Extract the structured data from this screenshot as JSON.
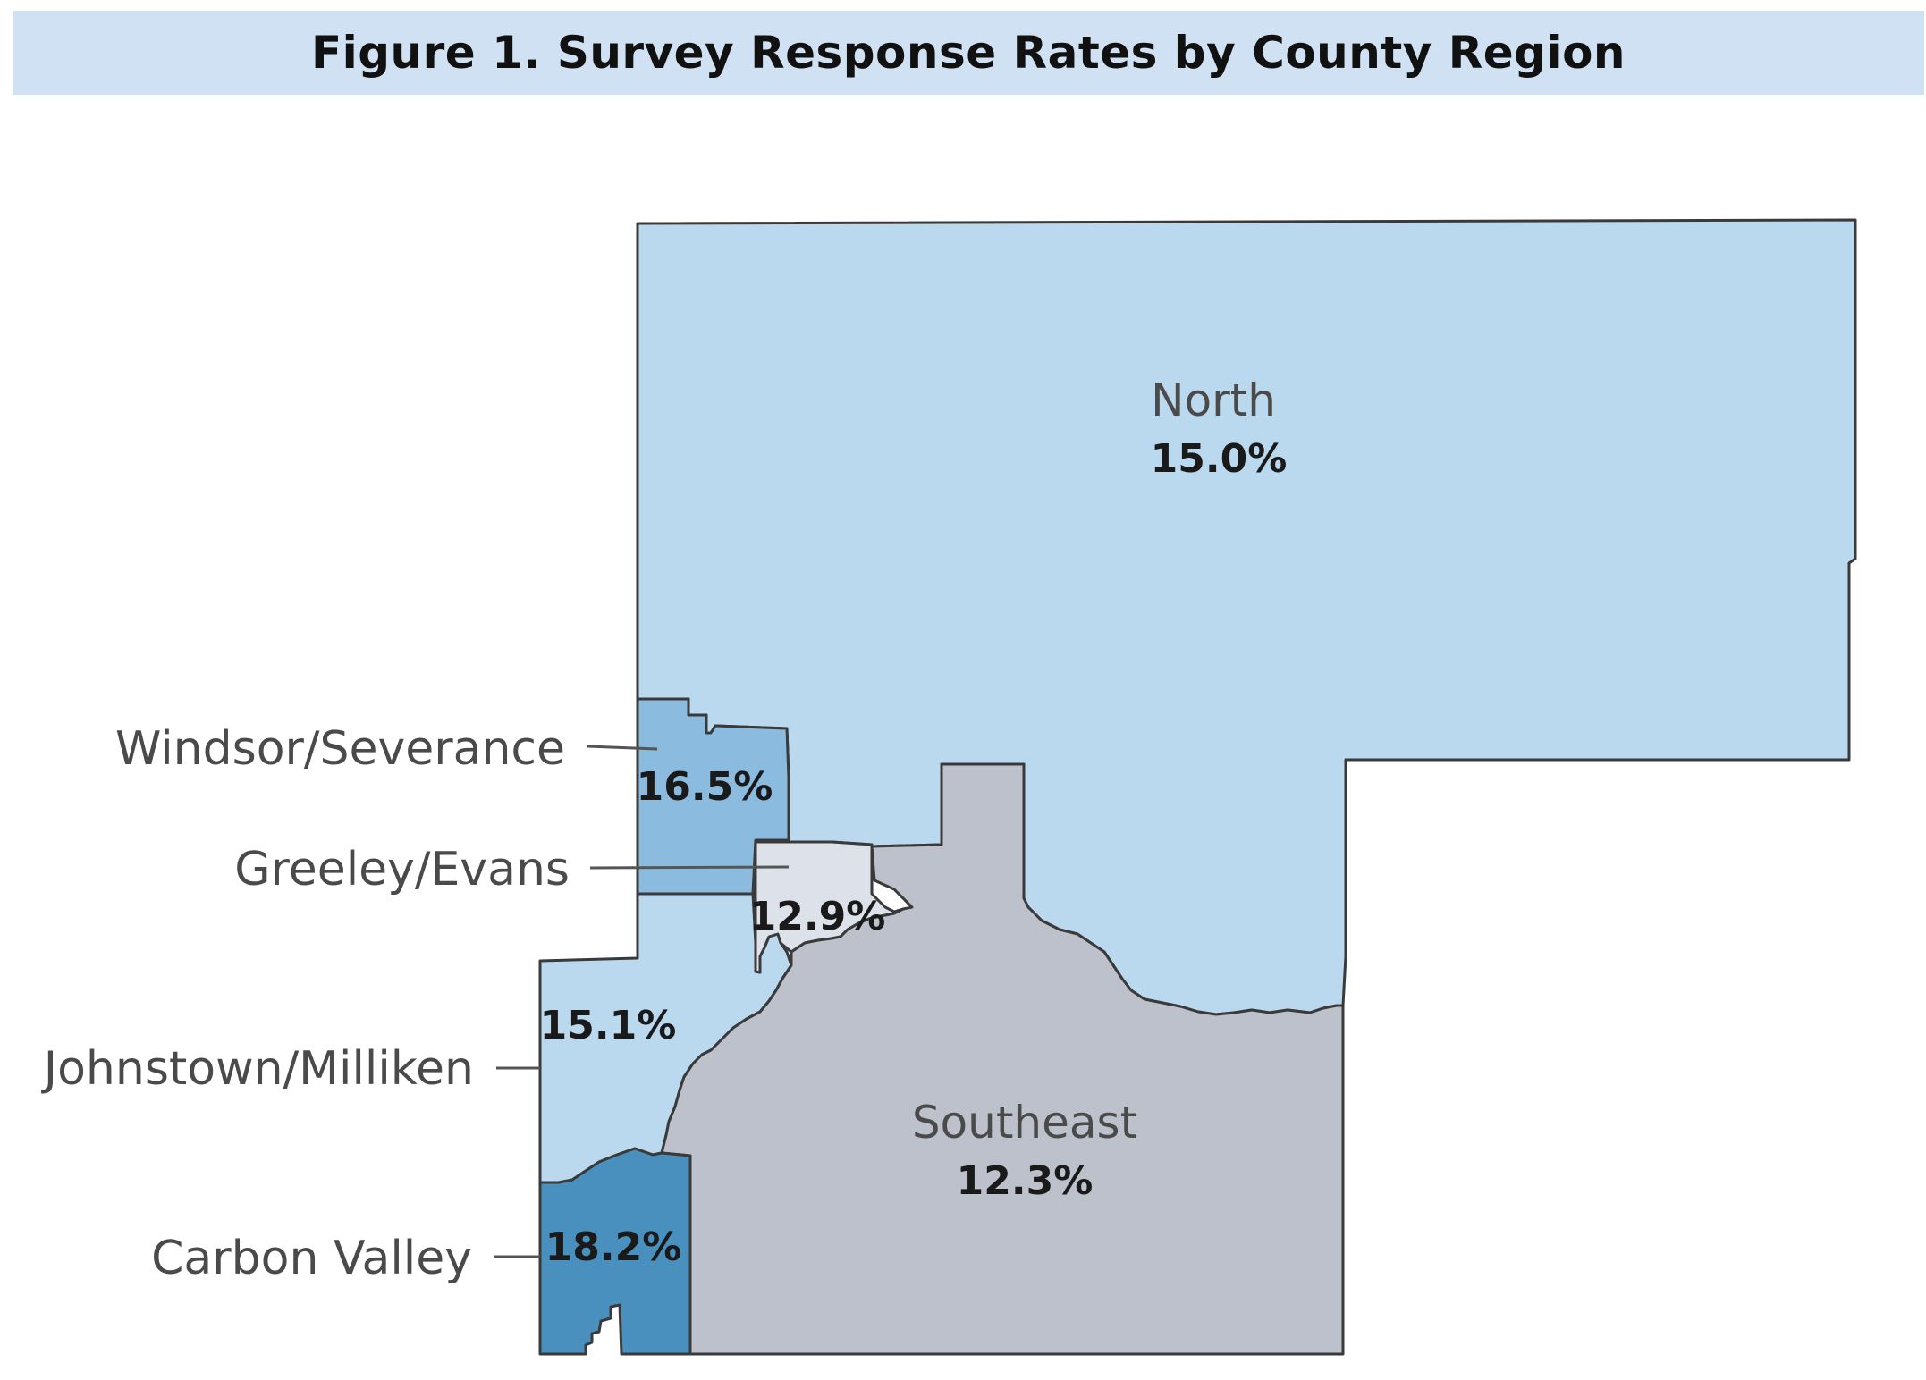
{
  "title": "Figure 1. Survey Response Rates by County Region",
  "colors": {
    "title_bg": "#cfe1f2",
    "north": "#bad8ee",
    "johnstown": "#bad8ee",
    "windsor": "#8bbcdf",
    "greeley": "#dde2ea",
    "southeast": "#bcc1cb",
    "carbon_valley": "#4a90bf"
  },
  "regions": {
    "north": {
      "name": "North",
      "rate": "15.0%"
    },
    "windsor": {
      "name": "Windsor/Severance",
      "rate": "16.5%"
    },
    "greeley": {
      "name": "Greeley/Evans",
      "rate": "12.9%"
    },
    "johnstown": {
      "name": "Johnstown/Milliken",
      "rate": "15.1%"
    },
    "southeast": {
      "name": "Southeast",
      "rate": "12.3%"
    },
    "carbon_valley": {
      "name": "Carbon Valley",
      "rate": "18.2%"
    }
  }
}
